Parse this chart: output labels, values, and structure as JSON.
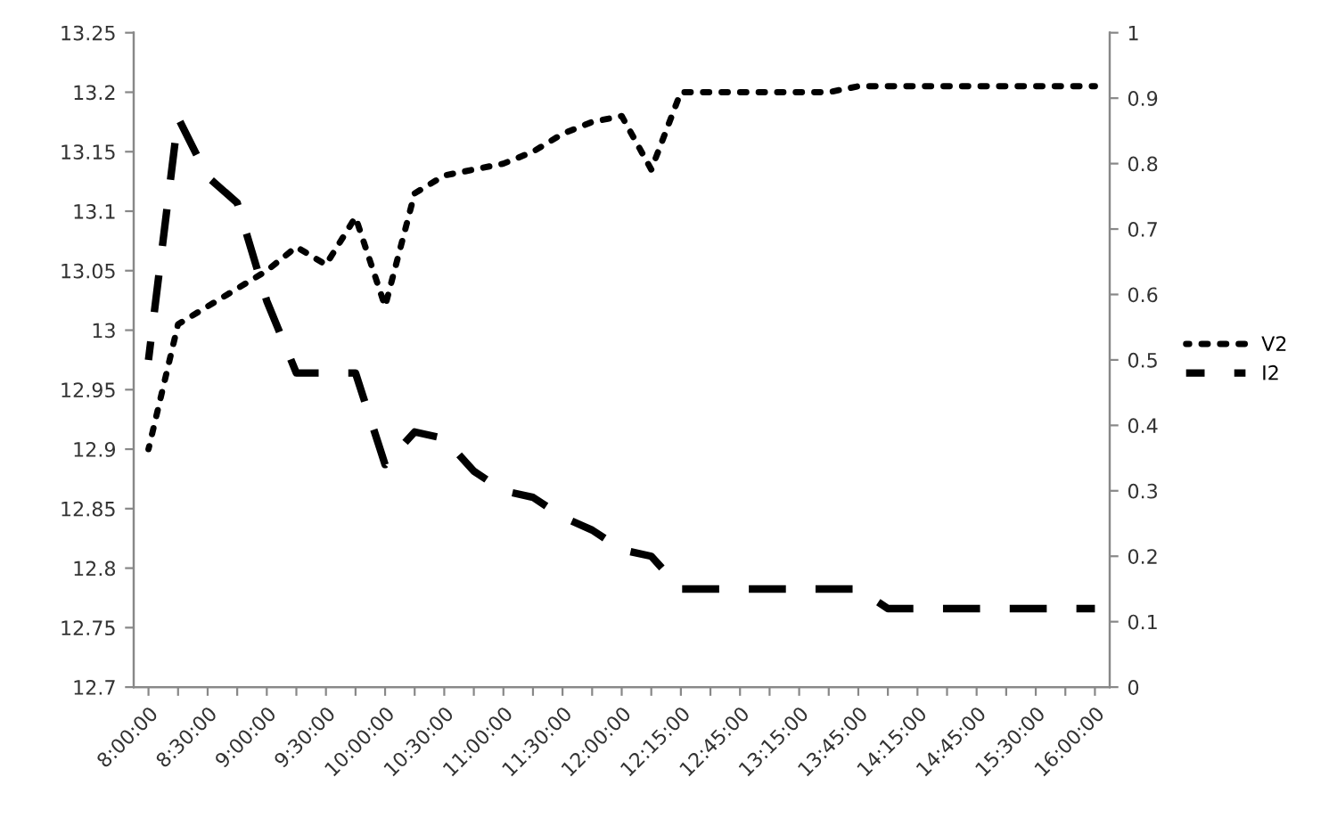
{
  "chart_data": {
    "type": "line",
    "categories": [
      "8:00:00",
      null,
      "8:30:00",
      null,
      "9:00:00",
      null,
      "9:30:00",
      null,
      "10:00:00",
      null,
      "10:30:00",
      null,
      "11:00:00",
      null,
      "11:30:00",
      null,
      "12:00:00",
      null,
      "12:15:00",
      null,
      "12:45:00",
      null,
      "13:15:00",
      null,
      "13:45:00",
      null,
      "14:15:00",
      null,
      "14:45:00",
      null,
      "15:30:00",
      null,
      "16:00:00"
    ],
    "series": [
      {
        "name": "V2",
        "color": "#000000",
        "line_style": "dotted",
        "values": [
          12.9,
          13.005,
          13.02,
          13.035,
          13.05,
          13.07,
          13.055,
          13.095,
          13.02,
          13.115,
          13.13,
          13.135,
          13.14,
          13.15,
          13.165,
          13.175,
          13.18,
          13.135,
          13.2,
          13.2,
          13.2,
          13.2,
          13.2,
          13.2,
          13.205,
          13.205,
          13.205,
          13.205,
          13.205,
          13.205,
          13.205,
          13.205,
          13.205
        ]
      },
      {
        "name": "I2",
        "color": "#000000",
        "line_style": "dashed",
        "axis": "y2",
        "values": [
          0.5,
          0.87,
          0.78,
          0.74,
          0.59,
          0.48,
          0.48,
          0.48,
          0.34,
          0.39,
          0.38,
          0.33,
          0.3,
          0.29,
          0.26,
          0.24,
          0.21,
          0.2,
          0.15,
          0.15,
          0.15,
          0.15,
          0.15,
          0.15,
          0.15,
          0.12,
          0.12,
          0.12,
          0.12,
          0.12,
          0.12,
          0.12,
          0.12
        ]
      }
    ],
    "ylim": [
      12.7,
      13.25
    ],
    "yticks": [
      12.7,
      12.75,
      12.8,
      12.85,
      12.9,
      12.95,
      13,
      13.05,
      13.1,
      13.15,
      13.2,
      13.25
    ],
    "y2lim": [
      0,
      1
    ],
    "y2ticks": [
      0,
      0.1,
      0.2,
      0.3,
      0.4,
      0.5,
      0.6,
      0.7,
      0.8,
      0.9,
      1
    ],
    "legend": "right"
  }
}
